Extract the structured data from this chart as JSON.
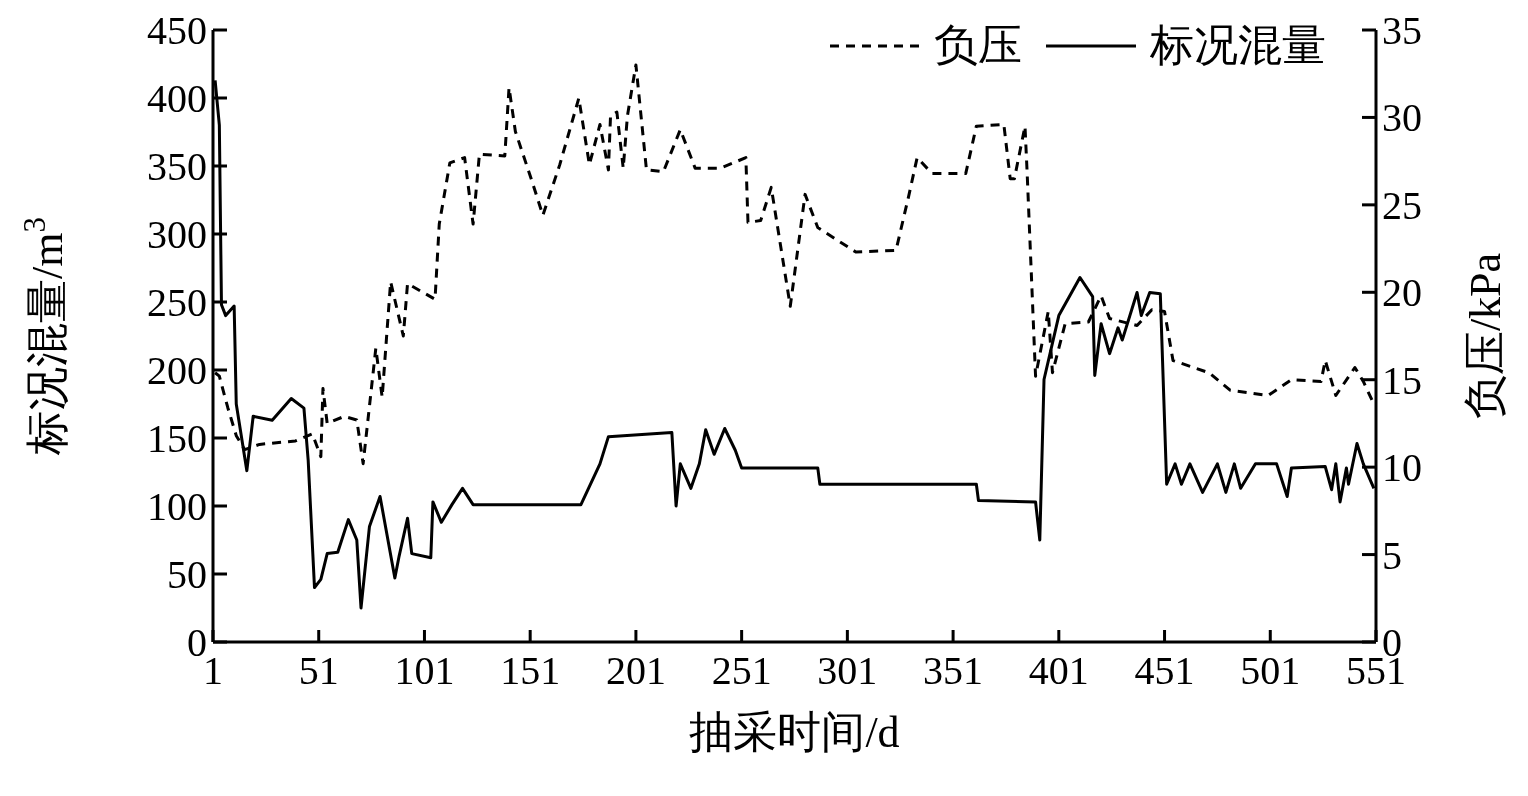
{
  "chart_data": {
    "type": "line",
    "xlabel": "抽采时间/d",
    "ylabel": "标况混量/m$^{3}$",
    "y2label": "负压/kPa",
    "legend": "top right",
    "xlim": [
      1,
      551
    ],
    "xticks": [
      1,
      51,
      101,
      151,
      201,
      251,
      301,
      351,
      401,
      451,
      501,
      551
    ],
    "ylim": [
      0,
      450
    ],
    "yticks": [
      0,
      50,
      100,
      150,
      200,
      250,
      300,
      350,
      400,
      450
    ],
    "y2lim": [
      0,
      35
    ],
    "y2ticks": [
      0,
      5,
      10,
      15,
      20,
      25,
      30,
      35
    ],
    "series": [
      {
        "name": "负压",
        "color": "#000000",
        "axis": "y2",
        "line_style": "dashed",
        "x": [
          2,
          4,
          8,
          12,
          16,
          23,
          40,
          48,
          52,
          53,
          55,
          63,
          69,
          72,
          78,
          81,
          85,
          91,
          93,
          106,
          108,
          113,
          120,
          124,
          127,
          139,
          141,
          144,
          152,
          157,
          165,
          174,
          179,
          184,
          188,
          189,
          192,
          195,
          197,
          201,
          206,
          214,
          222,
          229,
          241,
          253,
          254,
          260,
          265,
          274,
          281,
          287,
          305,
          324,
          330,
          334,
          341,
          357,
          362,
          375,
          378,
          380,
          385,
          386,
          390,
          396,
          398,
          404,
          415,
          421,
          425,
          438,
          445,
          451,
          455,
          472,
          482,
          500,
          511,
          525,
          527,
          532,
          541,
          545,
          550
        ],
        "values": [
          15.4,
          15.2,
          13.4,
          11.8,
          11.0,
          11.3,
          11.5,
          11.9,
          10.6,
          14.5,
          12.5,
          12.9,
          12.7,
          10.2,
          16.8,
          14.0,
          20.6,
          17.5,
          20.5,
          19.6,
          23.9,
          27.4,
          27.7,
          23.9,
          27.9,
          27.8,
          31.7,
          29.2,
          26.3,
          24.4,
          27.3,
          31.1,
          27.3,
          29.6,
          27.0,
          30.1,
          30.3,
          27.1,
          30.1,
          33.0,
          27.0,
          26.9,
          29.3,
          27.1,
          27.1,
          27.7,
          24.0,
          24.1,
          26.0,
          19.2,
          25.6,
          23.7,
          22.3,
          22.4,
          25.5,
          27.7,
          26.8,
          26.8,
          29.5,
          29.6,
          26.5,
          26.5,
          29.5,
          26.9,
          15.2,
          18.9,
          15.4,
          18.2,
          18.3,
          19.8,
          18.5,
          18.1,
          19.0,
          18.9,
          16.1,
          15.4,
          14.4,
          14.1,
          15.0,
          14.9,
          16.1,
          14.1,
          15.7,
          14.9,
          13.6
        ]
      },
      {
        "name": "标况混量",
        "color": "#000000",
        "line_style": "solid",
        "x": [
          2,
          4,
          5,
          7,
          11,
          12,
          17,
          20,
          29,
          38,
          44,
          46,
          49,
          52,
          55,
          60,
          65,
          69,
          71,
          75,
          80,
          87,
          89,
          93,
          95,
          104,
          105,
          109,
          114,
          119,
          124,
          175,
          184,
          188,
          218,
          220,
          222,
          227,
          231,
          234,
          238,
          243,
          248,
          251,
          287,
          288,
          362,
          363,
          390,
          392,
          394,
          401,
          411,
          417,
          418,
          421,
          425,
          429,
          431,
          438,
          440,
          444,
          449,
          452,
          456,
          459,
          463,
          469,
          476,
          480,
          484,
          487,
          494,
          504,
          509,
          511,
          527,
          530,
          532,
          534,
          537,
          538,
          542,
          545,
          550
        ],
        "values": [
          413,
          380,
          248,
          240,
          247,
          175,
          126,
          166,
          163,
          179,
          172,
          134,
          40,
          46,
          65,
          66,
          90,
          75,
          25,
          85,
          107,
          47,
          63,
          91,
          65,
          62,
          103,
          88,
          101,
          113,
          101,
          101,
          131,
          151,
          154,
          100,
          131,
          113,
          131,
          156,
          138,
          157,
          141,
          128,
          128,
          116,
          116,
          104,
          103,
          75,
          193,
          240,
          268,
          254,
          196,
          234,
          212,
          231,
          222,
          257,
          240,
          257,
          256,
          116,
          131,
          116,
          131,
          110,
          131,
          110,
          131,
          113,
          131,
          131,
          107,
          128,
          129,
          112,
          131,
          103,
          128,
          116,
          146,
          131,
          113
        ]
      }
    ]
  }
}
